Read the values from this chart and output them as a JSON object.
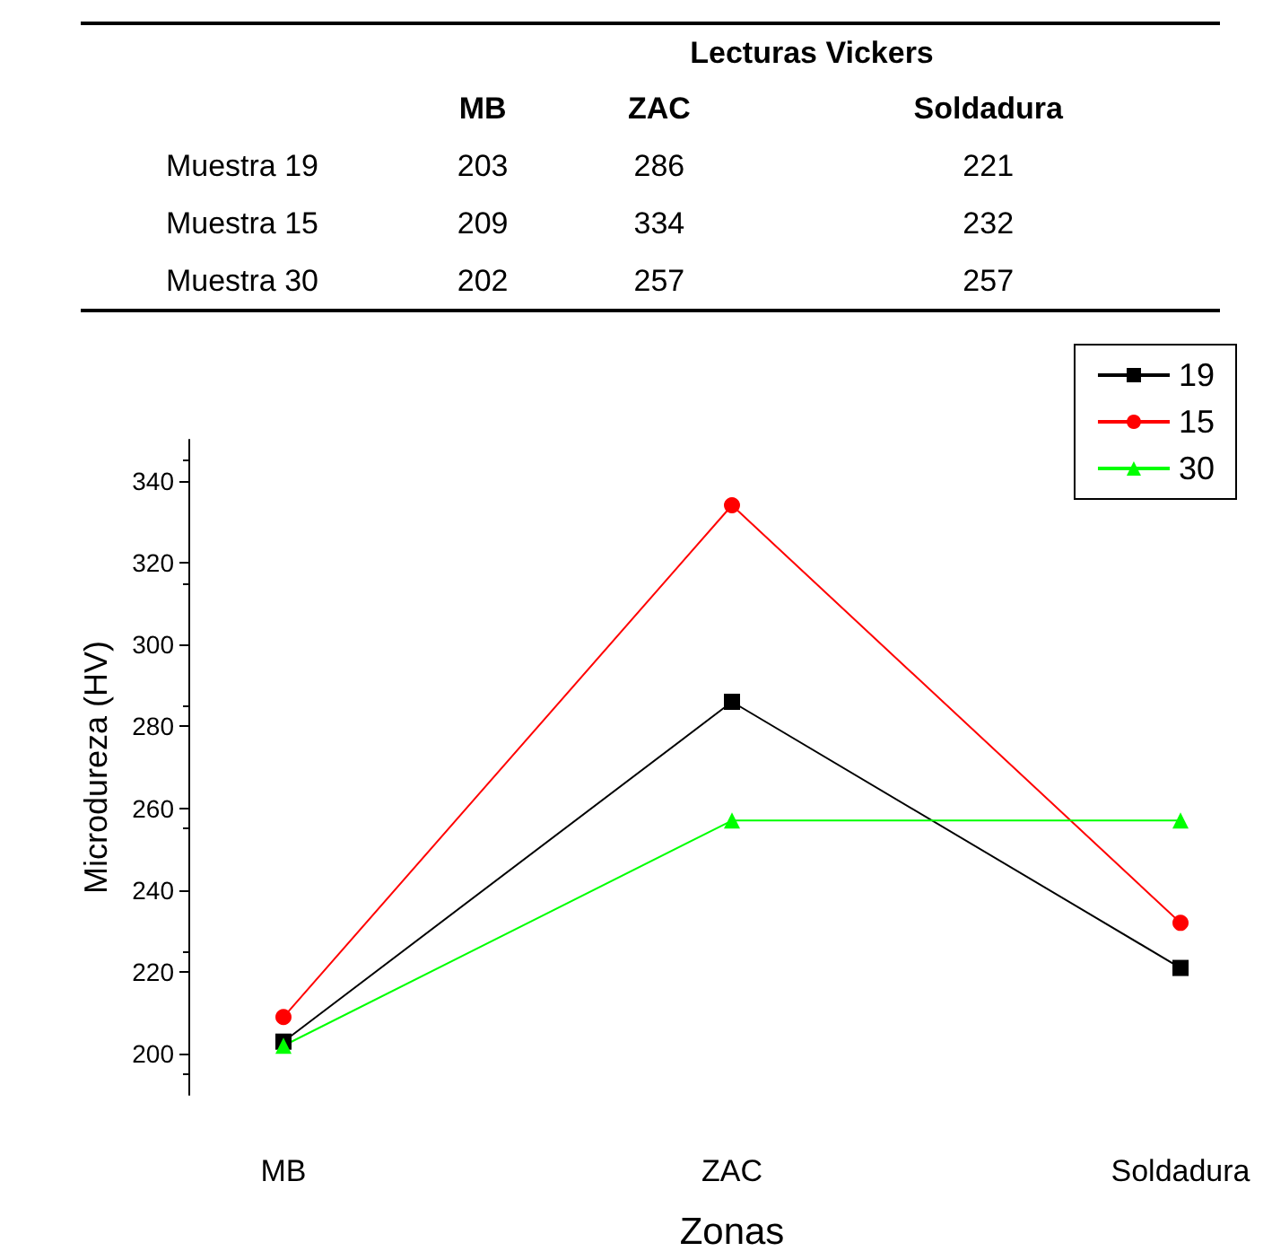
{
  "chart_data": {
    "type": "line",
    "xlabel": "Zonas",
    "ylabel": "Microdureza (HV)",
    "annotations": [
      "Lecturas Vickers",
      "Muestra 19",
      "Muestra 15",
      "Muestra 30"
    ],
    "categories": [
      "MB",
      "ZAC",
      "Soldadura"
    ],
    "series": [
      {
        "name": "19",
        "color": "#000000",
        "marker": "square",
        "values": [
          203,
          286,
          221
        ]
      },
      {
        "name": "15",
        "color": "#ff0000",
        "marker": "circle",
        "values": [
          209,
          334,
          232
        ]
      },
      {
        "name": "30",
        "color": "#00ff00",
        "marker": "triangle",
        "values": [
          202,
          257,
          257
        ]
      }
    ],
    "ylim": [
      190,
      350
    ],
    "yticks": [
      200,
      220,
      240,
      260,
      280,
      300,
      320,
      340
    ],
    "grid": false,
    "legend": "top right",
    "data_labels": true
  }
}
